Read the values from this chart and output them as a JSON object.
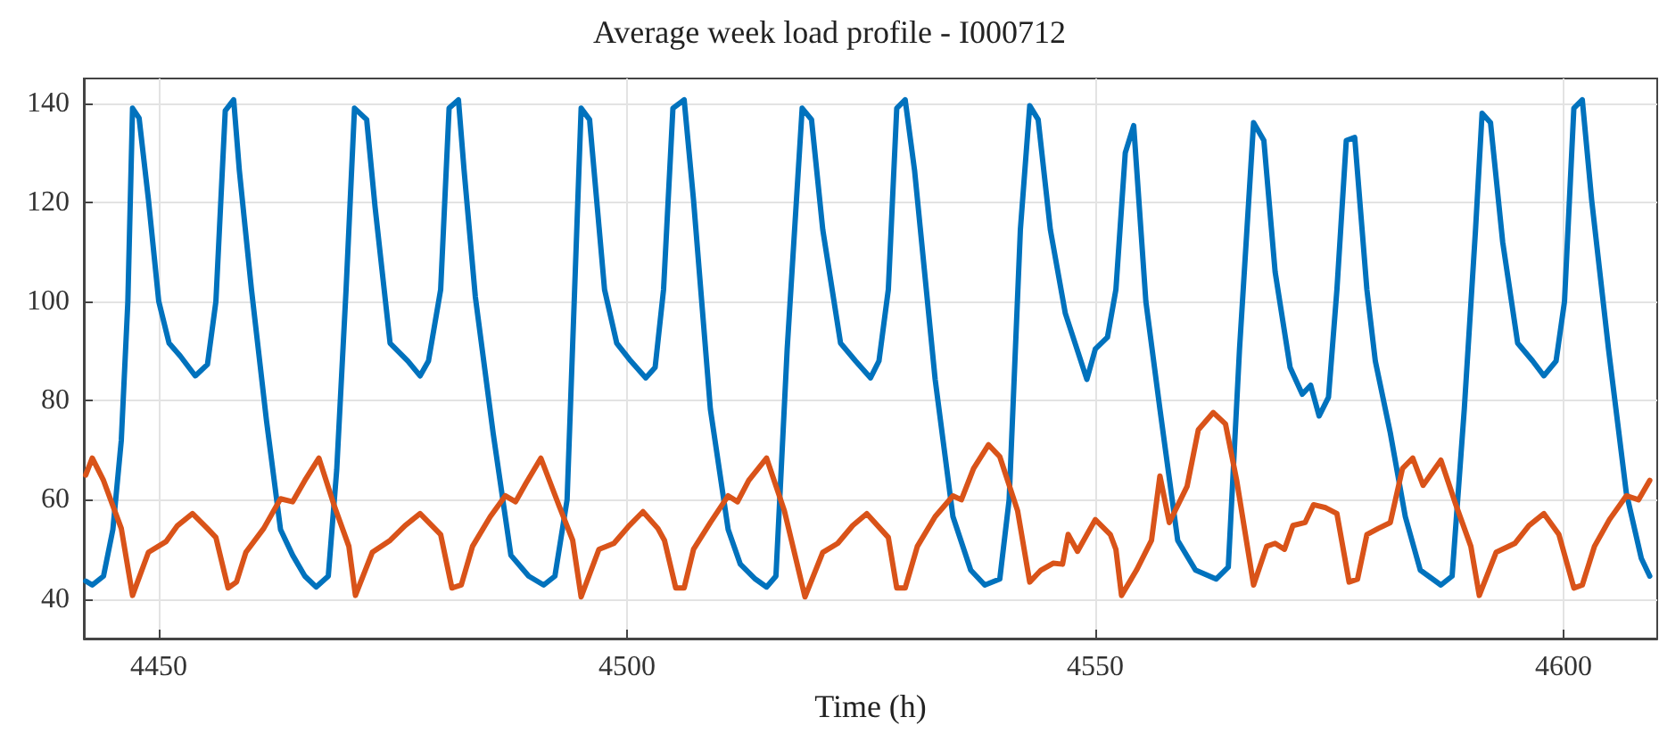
{
  "chart_data": {
    "type": "line",
    "title": "Average week load profile - I000712",
    "xlabel": "Time (h)",
    "xlim": [
      4442,
      4610
    ],
    "ylim": [
      32,
      145
    ],
    "xticks": [
      4450,
      4500,
      4550,
      4600
    ],
    "yticks": [
      40,
      60,
      80,
      100,
      120,
      140
    ],
    "grid": true,
    "marker": "none",
    "line_style": "solid",
    "series": [
      {
        "color": "#0072bd",
        "x": [
          4442.2,
          4442.9,
          4444.1,
          4445.1,
          4446,
          4446.7,
          4447.2,
          4447.9,
          4448.9,
          4450,
          4451.1,
          4452.3,
          4453.9,
          4455.2,
          4456.1,
          4457.1,
          4458,
          4458.6,
          4459.9,
          4461.5,
          4463,
          4464.3,
          4465.6,
          4466.8,
          4468.1,
          4469,
          4470,
          4470.9,
          4472.2,
          4473.1,
          4474.7,
          4476.6,
          4477.9,
          4478.8,
          4480.1,
          4481,
          4482,
          4482.6,
          4483.8,
          4485.7,
          4487.6,
          4489.5,
          4491.1,
          4492.3,
          4493.6,
          4495.1,
          4496,
          4497.6,
          4498.9,
          4500.4,
          4502,
          4503,
          4503.9,
          4504.9,
          4506.1,
          4507.1,
          4508.9,
          4510.8,
          4512.1,
          4513.7,
          4514.9,
          4515.9,
          4517.1,
          4518.7,
          4519.7,
          4520.9,
          4522.8,
          4524.4,
          4526,
          4526.9,
          4527.9,
          4528.8,
          4529.7,
          4530.7,
          4532.9,
          4534.8,
          4536.7,
          4538.2,
          4539.8,
          4540.8,
          4542,
          4543,
          4543.9,
          4545.2,
          4546.8,
          4549.1,
          4550,
          4551.3,
          4552.2,
          4553.2,
          4554.1,
          4555.4,
          4556.9,
          4558.8,
          4560.7,
          4562.9,
          4564.2,
          4565.4,
          4566.9,
          4568,
          4569.2,
          4570.8,
          4572.1,
          4573,
          4573.9,
          4574.9,
          4575.8,
          4576.8,
          4577.7,
          4579,
          4579.9,
          4581.5,
          4583.1,
          4584.7,
          4586.9,
          4588.1,
          4589.4,
          4590.6,
          4591.3,
          4592.2,
          4593.5,
          4595.1,
          4596.7,
          4597.9,
          4599.2,
          4600.1,
          4601.1,
          4602,
          4603,
          4604.8,
          4606.7,
          4608.3,
          4609.2
        ],
        "values": [
          43.6,
          42.8,
          44.6,
          54,
          72,
          100,
          139,
          137,
          120.5,
          100,
          91.6,
          89,
          85,
          87.3,
          100,
          138.5,
          140.7,
          126.5,
          102.4,
          76,
          54,
          48.8,
          44.6,
          42.4,
          44.6,
          66,
          102.4,
          139,
          136.7,
          119,
          91.6,
          88,
          85,
          88,
          102.4,
          139,
          140.7,
          126.5,
          101,
          73.5,
          48.8,
          44.6,
          42.8,
          44.6,
          60,
          139,
          136.7,
          102.4,
          91.6,
          88,
          84.6,
          86.7,
          102.4,
          139,
          140.7,
          120.5,
          78.3,
          54,
          47,
          44,
          42.4,
          44.6,
          90.4,
          139,
          136.7,
          114.5,
          91.6,
          88,
          84.6,
          88,
          102.4,
          139,
          140.7,
          126.5,
          84.3,
          56.6,
          45.8,
          42.8,
          44,
          60,
          114.5,
          139.5,
          136.7,
          114.5,
          97.6,
          84.3,
          90.4,
          92.8,
          102.4,
          130,
          135.5,
          100,
          78.3,
          51.8,
          45.8,
          44,
          46.4,
          90.4,
          136.1,
          132.5,
          106,
          86.7,
          81.3,
          83.1,
          76.9,
          80.7,
          102.4,
          132.5,
          133.1,
          102.4,
          88,
          73.5,
          56.6,
          45.8,
          42.8,
          44.6,
          78.3,
          114.5,
          138,
          136.1,
          112,
          91.6,
          88,
          85,
          88,
          100,
          139,
          140.7,
          120.5,
          90.4,
          61.4,
          48.2,
          44.6
        ]
      },
      {
        "color": "#d95319",
        "x": [
          4442.2,
          4442.9,
          4444.1,
          4446,
          4447.2,
          4448.9,
          4450.8,
          4452,
          4453.6,
          4455.2,
          4456.1,
          4457.4,
          4458.3,
          4459.3,
          4461.2,
          4463,
          4464.3,
          4465.6,
          4467.1,
          4468.7,
          4470.3,
          4471,
          4472.8,
          4474.7,
          4476.3,
          4477.9,
          4480.1,
          4481.3,
          4482.3,
          4483.5,
          4485.4,
          4487,
          4488.1,
          4489.2,
          4490.8,
          4492.7,
          4494.2,
          4495.1,
          4497,
          4498.6,
          4500.1,
          4501.7,
          4503.3,
          4504,
          4505.2,
          4506.1,
          4507.1,
          4508.9,
          4510.8,
          4511.8,
          4513,
          4514.9,
          4516.8,
          4519,
          4520.9,
          4522.5,
          4524.1,
          4525.6,
          4527.9,
          4528.8,
          4529.7,
          4531,
          4532.9,
          4534.8,
          4535.7,
          4537,
          4538.6,
          4539.8,
          4541.7,
          4543,
          4544.2,
          4545.5,
          4546.5,
          4547.1,
          4548.1,
          4550,
          4551.6,
          4552.2,
          4552.8,
          4554.4,
          4556,
          4556.9,
          4557.9,
          4559.8,
          4561,
          4562.6,
          4563.9,
          4565.1,
          4566.9,
          4568.3,
          4569.2,
          4570.2,
          4571.1,
          4572.4,
          4573.3,
          4574.6,
          4575.8,
          4577.1,
          4578,
          4579,
          4580.2,
          4581.5,
          4582.8,
          4583.9,
          4585,
          4586.9,
          4588.5,
          4590.1,
          4591,
          4592.8,
          4594.8,
          4596.3,
          4597.9,
          4599.5,
          4601.1,
          4602,
          4603.3,
          4604.9,
          4606.7,
          4608,
          4609.2
        ],
        "values": [
          65,
          68.4,
          63.9,
          54.2,
          40.7,
          49.4,
          51.6,
          54.8,
          57.2,
          54.2,
          52.4,
          42.2,
          43.4,
          49.4,
          54.2,
          60.2,
          59.6,
          63.9,
          68.4,
          59,
          50.6,
          40.7,
          49.4,
          51.8,
          54.8,
          57.2,
          53,
          42.2,
          42.8,
          50.6,
          56.6,
          60.8,
          59.6,
          63.3,
          68.4,
          59,
          51.8,
          40.4,
          50,
          51.2,
          54.5,
          57.6,
          54.2,
          51.8,
          42.2,
          42.2,
          50,
          55.4,
          60.8,
          59.6,
          63.9,
          68.4,
          57.8,
          40.4,
          49.4,
          51.2,
          54.8,
          57.2,
          52.4,
          42.2,
          42.2,
          50.6,
          56.6,
          60.8,
          60,
          66.3,
          71.1,
          68.7,
          57.8,
          43.4,
          45.8,
          47.2,
          47,
          53,
          49.6,
          56,
          53,
          50,
          40.7,
          45.8,
          51.8,
          64.8,
          55.4,
          62.7,
          74.1,
          77.6,
          75.3,
          63.9,
          42.8,
          50.6,
          51.2,
          50,
          54.8,
          55.4,
          59,
          58.4,
          57.2,
          43.4,
          44,
          53,
          54.2,
          55.4,
          66.3,
          68.4,
          62.9,
          68,
          59,
          50.6,
          40.7,
          49.4,
          51.2,
          54.8,
          57.2,
          53,
          42.2,
          42.8,
          50.6,
          56,
          60.8,
          60,
          63.9
        ]
      }
    ]
  }
}
